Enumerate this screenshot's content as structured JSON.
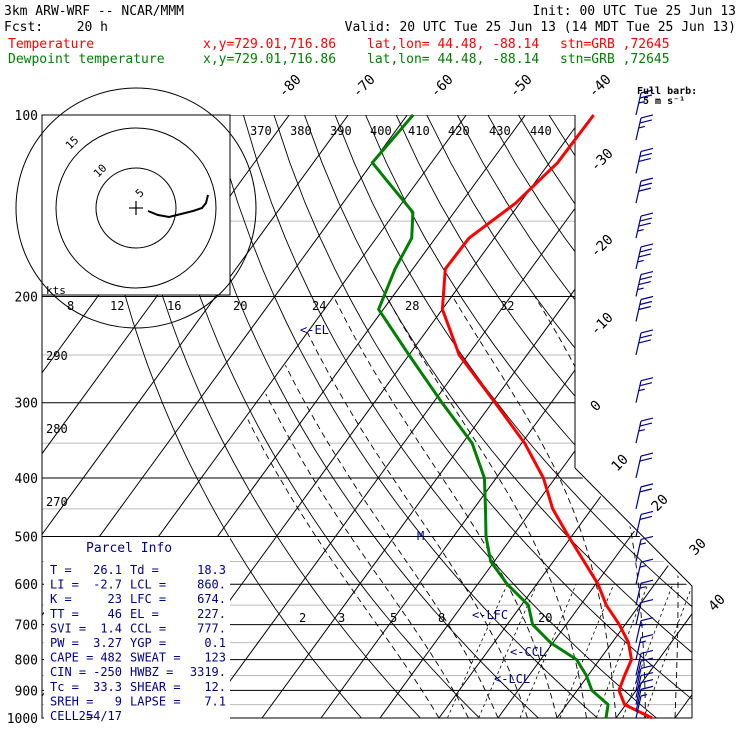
{
  "header": {
    "model": "3km ARW-WRF -- NCAR/MMM",
    "init": "Init: 00 UTC Tue 25 Jun 13",
    "fcst_label": "Fcst:",
    "fcst_value": "20 h",
    "valid": "Valid: 20 UTC Tue 25 Jun 13 (14 MDT Tue 25 Jun 13)",
    "temperature": {
      "label": "Temperature",
      "xy": "x,y=729.01,716.86",
      "latlon": "lat,lon= 44.48, -88.14",
      "stn": "stn=GRB ,72645",
      "color": "#ff0000"
    },
    "dewpoint": {
      "label": "Dewpoint temperature",
      "xy": "x,y=729.01,716.86",
      "latlon": "lat,lon= 44.48, -88.14",
      "stn": "stn=GRB ,72645",
      "color": "#008000"
    }
  },
  "barb_legend": {
    "title": "Full barb:",
    "value": "5 m s⁻¹"
  },
  "parcel_info": {
    "title": "Parcel Info",
    "rows": [
      [
        "T =",
        "26.1",
        "Td =",
        "18.3"
      ],
      [
        "LI =",
        "-2.7",
        "LCL =",
        "860."
      ],
      [
        "K =",
        "23",
        "LFC =",
        "674."
      ],
      [
        "TT =",
        "46",
        "EL =",
        "227."
      ],
      [
        "SVI =",
        "1.4",
        "CCL =",
        "777."
      ],
      [
        "PW =",
        "3.27",
        "YGP =",
        "0.1"
      ],
      [
        "CAPE =",
        "482",
        "SWEAT =",
        "123"
      ],
      [
        "CIN =",
        "-250",
        "HWBZ =",
        "3319."
      ],
      [
        "Tc =",
        "33.3",
        "SHEAR =",
        "12."
      ],
      [
        "SREH =",
        "9",
        "LAPSE =",
        "7.1"
      ],
      [
        "CELL =",
        "254/17",
        "",
        ""
      ]
    ]
  },
  "level_markers": {
    "el": "<-EL",
    "lfc": "<-LFC",
    "ccl": "<-CCL",
    "lcl": "<-LCL",
    "m": "M"
  },
  "hodograph": {
    "units": "kts",
    "ring_labels": [
      "5",
      "10",
      "15"
    ],
    "color": "#000000"
  },
  "chart_data": {
    "type": "line",
    "xlabel": "",
    "ylabel": "",
    "pressure_levels": [
      100,
      200,
      300,
      400,
      500,
      600,
      700,
      800,
      900,
      1000
    ],
    "temperature_ticks": [
      -80,
      -70,
      -60,
      -50,
      -40,
      -30,
      -20,
      -10,
      0,
      10,
      20,
      30,
      40
    ],
    "theta_labels": [
      370,
      380,
      390,
      400,
      410,
      420,
      430,
      440,
      290,
      280,
      270
    ],
    "mixing_ratio_labels": [
      "8",
      "12",
      "16",
      "20",
      "24",
      "28",
      "32"
    ],
    "mixing_ratio_low_labels": [
      "2",
      "3",
      "5",
      "8",
      "20"
    ],
    "ylim": [
      1000,
      100
    ],
    "series": [
      {
        "name": "Temperature",
        "color": "#ff0000",
        "points": [
          {
            "p": 1000,
            "t": 26.1
          },
          {
            "p": 950,
            "t": 19.8
          },
          {
            "p": 900,
            "t": 17.1
          },
          {
            "p": 850,
            "t": 16.2
          },
          {
            "p": 800,
            "t": 15.4
          },
          {
            "p": 750,
            "t": 12.8
          },
          {
            "p": 700,
            "t": 9.0
          },
          {
            "p": 650,
            "t": 4.4
          },
          {
            "p": 600,
            "t": 0.4
          },
          {
            "p": 550,
            "t": -4.8
          },
          {
            "p": 500,
            "t": -10.5
          },
          {
            "p": 450,
            "t": -16.6
          },
          {
            "p": 400,
            "t": -22.0
          },
          {
            "p": 350,
            "t": -29.5
          },
          {
            "p": 300,
            "t": -39.5
          },
          {
            "p": 250,
            "t": -51.5
          },
          {
            "p": 210,
            "t": -60.0
          },
          {
            "p": 180,
            "t": -64.5
          },
          {
            "p": 160,
            "t": -64.3
          },
          {
            "p": 140,
            "t": -60.7
          },
          {
            "p": 120,
            "t": -58.6
          },
          {
            "p": 100,
            "t": -58.4
          }
        ]
      },
      {
        "name": "Dewpoint temperature",
        "color": "#008000",
        "points": [
          {
            "p": 1000,
            "t": 18.3
          },
          {
            "p": 950,
            "t": 17.0
          },
          {
            "p": 900,
            "t": 12.5
          },
          {
            "p": 850,
            "t": 9.7
          },
          {
            "p": 800,
            "t": 6.1
          },
          {
            "p": 750,
            "t": -0.4
          },
          {
            "p": 700,
            "t": -5.7
          },
          {
            "p": 650,
            "t": -8.8
          },
          {
            "p": 600,
            "t": -15.0
          },
          {
            "p": 550,
            "t": -20.6
          },
          {
            "p": 500,
            "t": -24.5
          },
          {
            "p": 450,
            "t": -28.0
          },
          {
            "p": 400,
            "t": -32.0
          },
          {
            "p": 350,
            "t": -38.4
          },
          {
            "p": 300,
            "t": -48.5
          },
          {
            "p": 250,
            "t": -60.0
          },
          {
            "p": 210,
            "t": -70.8
          },
          {
            "p": 180,
            "t": -73.0
          },
          {
            "p": 160,
            "t": -74.0
          },
          {
            "p": 145,
            "t": -77.0
          },
          {
            "p": 120,
            "t": -90.0
          },
          {
            "p": 100,
            "t": -89.0
          }
        ]
      }
    ],
    "hodograph_trace": [
      [
        0.12,
        -0.03
      ],
      [
        0.22,
        -0.07
      ],
      [
        0.33,
        -0.09
      ],
      [
        0.45,
        -0.06
      ],
      [
        0.57,
        -0.03
      ],
      [
        0.66,
        0.0
      ],
      [
        0.7,
        0.05
      ],
      [
        0.72,
        0.13
      ]
    ],
    "wind_barbs": [
      {
        "p": 1000,
        "full": 0,
        "half": 1
      },
      {
        "p": 975,
        "full": 1,
        "half": 0
      },
      {
        "p": 950,
        "full": 1,
        "half": 0
      },
      {
        "p": 925,
        "full": 1,
        "half": 0
      },
      {
        "p": 900,
        "full": 1,
        "half": 0
      },
      {
        "p": 875,
        "full": 1,
        "half": 0
      },
      {
        "p": 850,
        "full": 1,
        "half": 0
      },
      {
        "p": 800,
        "full": 1,
        "half": 1
      },
      {
        "p": 750,
        "full": 1,
        "half": 1
      },
      {
        "p": 700,
        "full": 1,
        "half": 0
      },
      {
        "p": 650,
        "full": 1,
        "half": 1
      },
      {
        "p": 600,
        "full": 1,
        "half": 1
      },
      {
        "p": 550,
        "full": 1,
        "half": 1
      },
      {
        "p": 500,
        "full": 2,
        "half": 0
      },
      {
        "p": 450,
        "full": 2,
        "half": 0
      },
      {
        "p": 400,
        "full": 2,
        "half": 0
      },
      {
        "p": 350,
        "full": 2,
        "half": 1
      },
      {
        "p": 300,
        "full": 2,
        "half": 1
      },
      {
        "p": 250,
        "full": 3,
        "half": 0
      },
      {
        "p": 220,
        "full": 3,
        "half": 0
      },
      {
        "p": 200,
        "full": 3,
        "half": 1
      },
      {
        "p": 180,
        "full": 3,
        "half": 1
      },
      {
        "p": 160,
        "full": 3,
        "half": 1
      },
      {
        "p": 140,
        "full": 3,
        "half": 0
      },
      {
        "p": 125,
        "full": 3,
        "half": 0
      },
      {
        "p": 110,
        "full": 2,
        "half": 1
      },
      {
        "p": 100,
        "full": 2,
        "half": 1
      }
    ]
  }
}
